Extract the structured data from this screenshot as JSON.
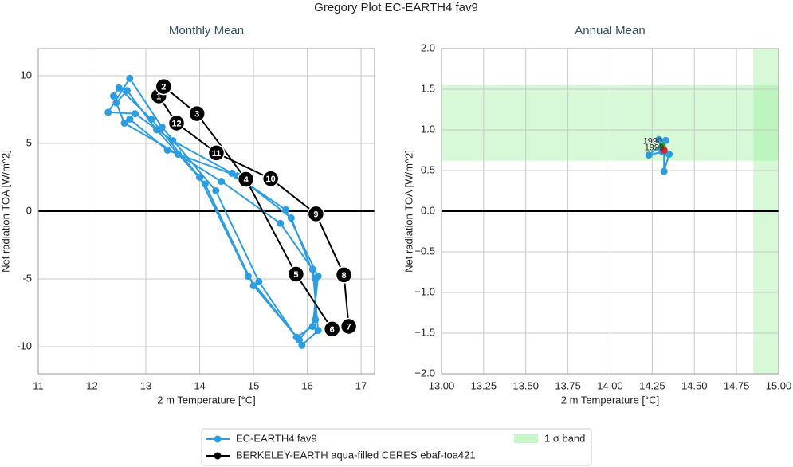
{
  "title": "Gregory Plot EC-EARTH4 fav9",
  "chart_data": [
    {
      "type": "line",
      "title": "Monthly Mean",
      "xlabel": "2 m Temperature [°C]",
      "ylabel": "Net radiation TOA [W/m^2]",
      "xlim": [
        11,
        17.25
      ],
      "ylim": [
        -12,
        12
      ],
      "xticks": [
        11,
        12,
        13,
        14,
        15,
        16,
        17
      ],
      "yticks": [
        -10,
        -5,
        0,
        5,
        10
      ],
      "grid": true,
      "hline": 0,
      "series": [
        {
          "name": "EC-EARTH4 fav9",
          "color": "#2b9de0",
          "x": [
            12.4,
            12.5,
            13.1,
            14.0,
            14.9,
            15.8,
            16.1,
            16.2,
            15.6,
            14.6,
            13.5,
            12.8,
            12.3,
            12.7,
            13.3,
            14.3,
            15.1,
            15.9,
            16.2,
            16.1,
            15.5,
            14.4,
            13.6,
            12.6,
            12.45,
            12.65,
            13.2,
            14.1,
            15.0,
            15.85,
            16.15,
            16.15,
            15.7,
            14.7,
            13.4,
            12.7
          ],
          "values": [
            8.5,
            9.1,
            6.8,
            2.5,
            -4.8,
            -9.3,
            -8.5,
            -4.8,
            0.1,
            2.8,
            5.2,
            7.2,
            7.3,
            9.8,
            6.2,
            1.5,
            -5.2,
            -9.9,
            -8.8,
            -4.3,
            -0.9,
            2.2,
            4.2,
            6.5,
            8.0,
            8.9,
            6.0,
            2.0,
            -5.5,
            -9.5,
            -8.0,
            -5.0,
            -0.5,
            2.6,
            4.5,
            6.8
          ]
        },
        {
          "name": "BERKELEY-EARTH aqua-filled CERES ebaf-toa421",
          "color": "#000000",
          "closed": true,
          "x": [
            13.24,
            13.33,
            13.95,
            14.86,
            15.79,
            16.46,
            16.77,
            16.68,
            16.16,
            15.32,
            14.31,
            13.57
          ],
          "values": [
            8.5,
            9.2,
            7.2,
            2.35,
            -4.65,
            -8.7,
            -8.5,
            -4.7,
            -0.2,
            2.4,
            4.3,
            6.5
          ],
          "point_labels": [
            "1",
            "2",
            "3",
            "4",
            "5",
            "6",
            "7",
            "8",
            "9",
            "10",
            "11",
            "12"
          ]
        }
      ]
    },
    {
      "type": "line",
      "title": "Annual Mean",
      "xlabel": "2 m Temperature [°C]",
      "ylabel": "Net radiation TOA [W/m^2]",
      "xlim": [
        13,
        15
      ],
      "ylim": [
        -2,
        2
      ],
      "xticks": [
        {
          "value": 13,
          "label": "13.00"
        },
        {
          "value": 13.25,
          "label": "13.25"
        },
        {
          "value": 13.5,
          "label": "13.50"
        },
        {
          "value": 13.75,
          "label": "13.75"
        },
        {
          "value": 14,
          "label": "14.00"
        },
        {
          "value": 14.25,
          "label": "14.25"
        },
        {
          "value": 14.5,
          "label": "14.50"
        },
        {
          "value": 14.75,
          "label": "14.75"
        },
        {
          "value": 15,
          "label": "15.00"
        }
      ],
      "yticks": [
        {
          "value": -2,
          "label": "−2.0"
        },
        {
          "value": -1.5,
          "label": "−1.5"
        },
        {
          "value": -1,
          "label": "−1.0"
        },
        {
          "value": -0.5,
          "label": "−0.5"
        },
        {
          "value": 0,
          "label": "0.0"
        },
        {
          "value": 0.5,
          "label": "0.5"
        },
        {
          "value": 1,
          "label": "1.0"
        },
        {
          "value": 1.5,
          "label": "1.5"
        },
        {
          "value": 2,
          "label": "2.0"
        }
      ],
      "grid": true,
      "hline": 0,
      "band_label": "1 σ band",
      "band_color": "#90ee90",
      "xband": [
        14.85,
        15.1
      ],
      "yband": [
        0.62,
        1.55
      ],
      "series": [
        {
          "color": "#2b9de0",
          "start_label": "1990",
          "end_label": "1999",
          "start_color": "#2ca02c",
          "end_color": "#d62728",
          "x": [
            14.31,
            14.29,
            14.33,
            14.23,
            14.31,
            14.35,
            14.32,
            14.32,
            14.3,
            14.32
          ],
          "values": [
            0.8,
            0.88,
            0.87,
            0.69,
            0.73,
            0.7,
            0.49,
            0.74,
            0.77,
            0.75
          ]
        }
      ]
    }
  ]
}
